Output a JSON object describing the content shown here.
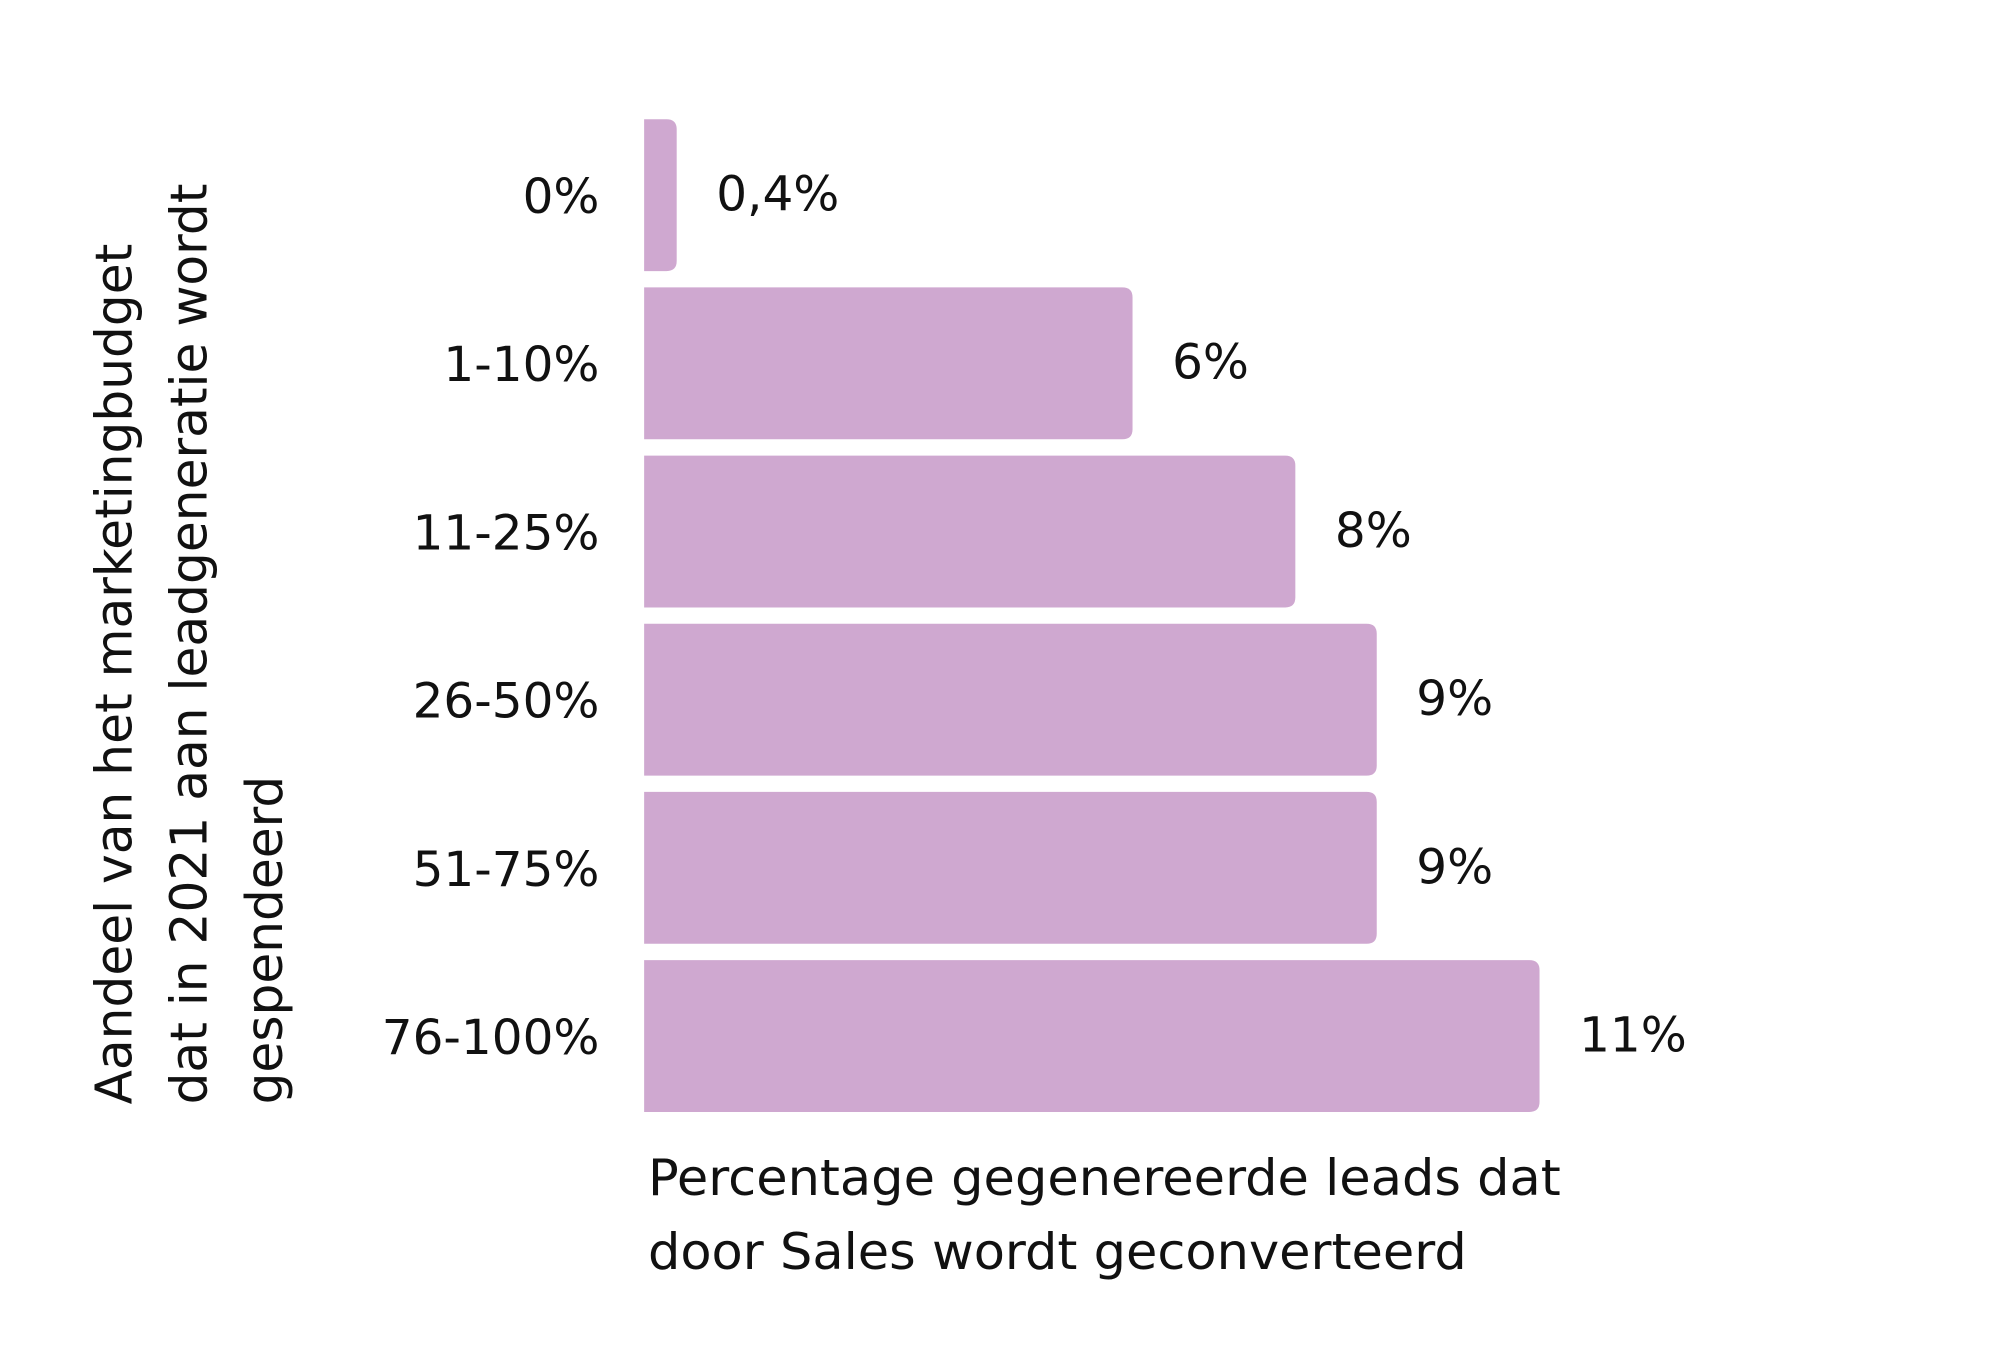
{
  "chart_data": {
    "type": "barh",
    "categories": [
      "0%",
      "1-10%",
      "11-25%",
      "26-50%",
      "51-75%",
      "76-100%"
    ],
    "values": [
      0.4,
      6,
      8,
      9,
      9,
      11
    ],
    "value_labels": [
      "0,4%",
      "6%",
      "8%",
      "9%",
      "9%",
      "11%"
    ],
    "color": "#cfa8d0",
    "xlim": [
      0,
      11
    ],
    "x_label": [
      "Percentage gegenereerde leads dat",
      "door Sales wordt geconverteerd"
    ],
    "y_label": [
      "Aandeel van het marketingbudget",
      "dat in 2021 aan leadgeneratie wordt",
      "gespendeerd"
    ]
  }
}
